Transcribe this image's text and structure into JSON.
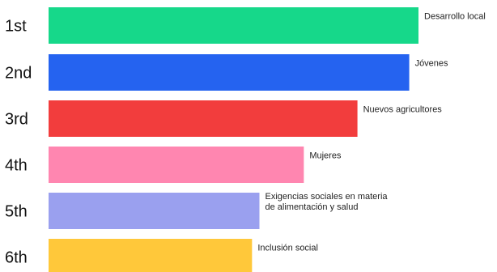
{
  "chart_data": {
    "type": "bar",
    "orientation": "horizontal",
    "grid": false,
    "ranks": [
      "1st",
      "2nd",
      "3rd",
      "4th",
      "5th",
      "6th"
    ],
    "categories": [
      "Desarrollo local",
      "Jóvenes",
      "Nuevos agricultores",
      "Mujeres",
      "Exigencias sociales en materia de alimentación y salud",
      "Inclusión social"
    ],
    "category_lines": [
      [
        "Desarrollo local"
      ],
      [
        "Jóvenes"
      ],
      [
        "Nuevos agricultores"
      ],
      [
        "Mujeres"
      ],
      [
        "Exigencias sociales en materia",
        "de alimentación y salud"
      ],
      [
        "Inclusión social"
      ]
    ],
    "values": [
      100,
      97.5,
      83.5,
      69,
      57,
      55
    ],
    "colors": [
      "#16d88a",
      "#2563f0",
      "#f23d3d",
      "#ff86b0",
      "#9aa0ef",
      "#ffc83a"
    ]
  }
}
